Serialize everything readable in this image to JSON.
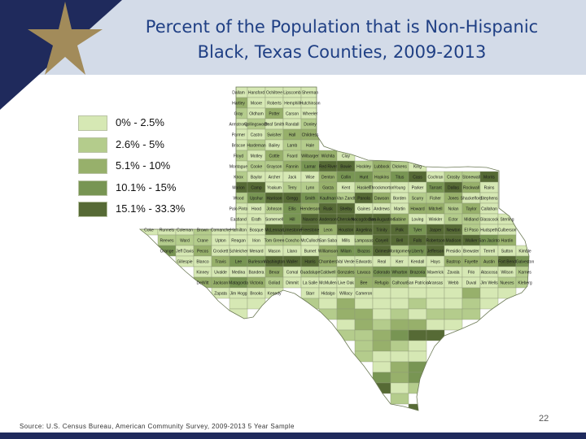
{
  "slide": {
    "title_line1": "Percent of the Population that is Non-Hispanic",
    "title_line2": "Black, Texas Counties, 2009-2013",
    "source": "Source: U.S. Census Bureau, American Community Survey, 2009-2013 5 Year Sample",
    "page_number": "22"
  },
  "colors": {
    "header": "#d3dbe8",
    "navy": "#1f2a5c",
    "gold": "#a28b5a",
    "title": "#1f3f84"
  },
  "legend": {
    "items": [
      {
        "label": "0% - 2.5%",
        "color": "#d6e8b4"
      },
      {
        "label": "2.6% - 5%",
        "color": "#b4cc8c"
      },
      {
        "label": "5.1% - 10%",
        "color": "#97b06b"
      },
      {
        "label": "10.1% - 15%",
        "color": "#789553"
      },
      {
        "label": "15.1% - 33.3%",
        "color": "#566a35"
      }
    ]
  },
  "map": {
    "counties": [
      {
        "name": "Dallam",
        "cls": 0
      },
      {
        "name": "Hansford",
        "cls": 0
      },
      {
        "name": "Ochiltree",
        "cls": 0
      },
      {
        "name": "Lipscomb",
        "cls": 0
      },
      {
        "name": "Sherman",
        "cls": 0
      },
      {
        "name": "Hartley",
        "cls": 2
      },
      {
        "name": "Moore",
        "cls": 0
      },
      {
        "name": "Roberts",
        "cls": 0
      },
      {
        "name": "Hemphill",
        "cls": 0
      },
      {
        "name": "Hutchinson",
        "cls": 0
      },
      {
        "name": "Gray",
        "cls": 1
      },
      {
        "name": "Oldham",
        "cls": 0
      },
      {
        "name": "Potter",
        "cls": 2
      },
      {
        "name": "Carson",
        "cls": 0
      },
      {
        "name": "Wheeler",
        "cls": 0
      },
      {
        "name": "Armstrong",
        "cls": 0
      },
      {
        "name": "Collingsworth",
        "cls": 1
      },
      {
        "name": "Deaf Smith",
        "cls": 0
      },
      {
        "name": "Randall",
        "cls": 0
      },
      {
        "name": "Donley",
        "cls": 1
      },
      {
        "name": "Parmer",
        "cls": 0
      },
      {
        "name": "Castro",
        "cls": 0
      },
      {
        "name": "Swisher",
        "cls": 1
      },
      {
        "name": "Hall",
        "cls": 2
      },
      {
        "name": "Childress",
        "cls": 2
      },
      {
        "name": "Briscoe",
        "cls": 0
      },
      {
        "name": "Hardeman",
        "cls": 1
      },
      {
        "name": "Bailey",
        "cls": 0
      },
      {
        "name": "Lamb",
        "cls": 1
      },
      {
        "name": "Hale",
        "cls": 1
      },
      {
        "name": "Floyd",
        "cls": 1
      },
      {
        "name": "Motley",
        "cls": 0
      },
      {
        "name": "Cottle",
        "cls": 2
      },
      {
        "name": "Foard",
        "cls": 1
      },
      {
        "name": "Wilbarger",
        "cls": 2
      },
      {
        "name": "Wichita",
        "cls": 2
      },
      {
        "name": "Clay",
        "cls": 0
      },
      {
        "name": "Montague",
        "cls": 0
      },
      {
        "name": "Cooke",
        "cls": 1
      },
      {
        "name": "Grayson",
        "cls": 1
      },
      {
        "name": "Fannin",
        "cls": 2
      },
      {
        "name": "Lamar",
        "cls": 3
      },
      {
        "name": "Red River",
        "cls": 4
      },
      {
        "name": "Bowie",
        "cls": 4
      },
      {
        "name": "Hockley",
        "cls": 1
      },
      {
        "name": "Lubbock",
        "cls": 2
      },
      {
        "name": "Dickens",
        "cls": 1
      },
      {
        "name": "King",
        "cls": 0
      },
      {
        "name": "Knox",
        "cls": 1
      },
      {
        "name": "Baylor",
        "cls": 0
      },
      {
        "name": "Archer",
        "cls": 0
      },
      {
        "name": "Jack",
        "cls": 0
      },
      {
        "name": "Wise",
        "cls": 0
      },
      {
        "name": "Denton",
        "cls": 2
      },
      {
        "name": "Collin",
        "cls": 3
      },
      {
        "name": "Hunt",
        "cls": 3
      },
      {
        "name": "Hopkins",
        "cls": 2
      },
      {
        "name": "Titus",
        "cls": 3
      },
      {
        "name": "Cass",
        "cls": 4
      },
      {
        "name": "Cochran",
        "cls": 0
      },
      {
        "name": "Crosby",
        "cls": 1
      },
      {
        "name": "Stonewall",
        "cls": 1
      },
      {
        "name": "Morris",
        "cls": 4
      },
      {
        "name": "Marion",
        "cls": 4
      },
      {
        "name": "Camp",
        "cls": 4
      },
      {
        "name": "Yoakum",
        "cls": 0
      },
      {
        "name": "Terry",
        "cls": 1
      },
      {
        "name": "Lynn",
        "cls": 1
      },
      {
        "name": "Garza",
        "cls": 2
      },
      {
        "name": "Kent",
        "cls": 0
      },
      {
        "name": "Haskell",
        "cls": 1
      },
      {
        "name": "Throckmorton",
        "cls": 0
      },
      {
        "name": "Young",
        "cls": 0
      },
      {
        "name": "Parker",
        "cls": 0
      },
      {
        "name": "Tarrant",
        "cls": 3
      },
      {
        "name": "Dallas",
        "cls": 4
      },
      {
        "name": "Rockwall",
        "cls": 2
      },
      {
        "name": "Rains",
        "cls": 0
      },
      {
        "name": "Wood",
        "cls": 1
      },
      {
        "name": "Upshur",
        "cls": 3
      },
      {
        "name": "Harrison",
        "cls": 4
      },
      {
        "name": "Gregg",
        "cls": 4
      },
      {
        "name": "Smith",
        "cls": 3
      },
      {
        "name": "Kaufman",
        "cls": 3
      },
      {
        "name": "Van Zandt",
        "cls": 1
      },
      {
        "name": "Panola",
        "cls": 4
      },
      {
        "name": "Dawson",
        "cls": 2
      },
      {
        "name": "Borden",
        "cls": 0
      },
      {
        "name": "Scurry",
        "cls": 1
      },
      {
        "name": "Fisher",
        "cls": 1
      },
      {
        "name": "Jones",
        "cls": 2
      },
      {
        "name": "Shackelford",
        "cls": 0
      },
      {
        "name": "Stephens",
        "cls": 0
      },
      {
        "name": "Palo Pinto",
        "cls": 0
      },
      {
        "name": "Hood",
        "cls": 0
      },
      {
        "name": "Johnson",
        "cls": 1
      },
      {
        "name": "Ellis",
        "cls": 3
      },
      {
        "name": "Henderson",
        "cls": 2
      },
      {
        "name": "Rusk",
        "cls": 4
      },
      {
        "name": "Shelby",
        "cls": 4
      },
      {
        "name": "Gaines",
        "cls": 0
      },
      {
        "name": "Andrews",
        "cls": 0
      },
      {
        "name": "Martin",
        "cls": 0
      },
      {
        "name": "Howard",
        "cls": 2
      },
      {
        "name": "Mitchell",
        "cls": 2
      },
      {
        "name": "Nolan",
        "cls": 1
      },
      {
        "name": "Taylor",
        "cls": 2
      },
      {
        "name": "Callahan",
        "cls": 0
      },
      {
        "name": "Eastland",
        "cls": 0
      },
      {
        "name": "Erath",
        "cls": 0
      },
      {
        "name": "Somervell",
        "cls": 0
      },
      {
        "name": "Hill",
        "cls": 3
      },
      {
        "name": "Navarro",
        "cls": 4
      },
      {
        "name": "Anderson",
        "cls": 4
      },
      {
        "name": "Cherokee",
        "cls": 4
      },
      {
        "name": "Nacogdoches",
        "cls": 4
      },
      {
        "name": "San Augustine",
        "cls": 4
      },
      {
        "name": "Sabine",
        "cls": 2
      },
      {
        "name": "Loving",
        "cls": 0
      },
      {
        "name": "Winkler",
        "cls": 0
      },
      {
        "name": "Ector",
        "cls": 1
      },
      {
        "name": "Midland",
        "cls": 1
      },
      {
        "name": "Glasscock",
        "cls": 0
      },
      {
        "name": "Sterling",
        "cls": 0
      },
      {
        "name": "Coke",
        "cls": 0
      },
      {
        "name": "Runnels",
        "cls": 0
      },
      {
        "name": "Coleman",
        "cls": 0
      },
      {
        "name": "Brown",
        "cls": 1
      },
      {
        "name": "Comanche",
        "cls": 0
      },
      {
        "name": "Hamilton",
        "cls": 0
      },
      {
        "name": "Bosque",
        "cls": 0
      },
      {
        "name": "McLennan",
        "cls": 4
      },
      {
        "name": "Limestone",
        "cls": 4
      },
      {
        "name": "Freestone",
        "cls": 4
      },
      {
        "name": "Leon",
        "cls": 2
      },
      {
        "name": "Houston",
        "cls": 4
      },
      {
        "name": "Angelina",
        "cls": 4
      },
      {
        "name": "Trinity",
        "cls": 4
      },
      {
        "name": "Polk",
        "cls": 4
      },
      {
        "name": "Tyler",
        "cls": 3
      },
      {
        "name": "Jasper",
        "cls": 4
      },
      {
        "name": "Newton",
        "cls": 4
      },
      {
        "name": "El Paso",
        "cls": 1
      },
      {
        "name": "Hudspeth",
        "cls": 0
      },
      {
        "name": "Culberson",
        "cls": 0
      },
      {
        "name": "Reeves",
        "cls": 1
      },
      {
        "name": "Ward",
        "cls": 1
      },
      {
        "name": "Crane",
        "cls": 1
      },
      {
        "name": "Upton",
        "cls": 0
      },
      {
        "name": "Reagan",
        "cls": 0
      },
      {
        "name": "Irion",
        "cls": 0
      },
      {
        "name": "Tom Green",
        "cls": 1
      },
      {
        "name": "Concho",
        "cls": 1
      },
      {
        "name": "McCulloch",
        "cls": 0
      },
      {
        "name": "San Saba",
        "cls": 0
      },
      {
        "name": "Mills",
        "cls": 0
      },
      {
        "name": "Lampasas",
        "cls": 1
      },
      {
        "name": "Coryell",
        "cls": 4
      },
      {
        "name": "Bell",
        "cls": 4
      },
      {
        "name": "Falls",
        "cls": 4
      },
      {
        "name": "Robertson",
        "cls": 4
      },
      {
        "name": "Madison",
        "cls": 4
      },
      {
        "name": "Walker",
        "cls": 4
      },
      {
        "name": "San Jacinto",
        "cls": 3
      },
      {
        "name": "Hardin",
        "cls": 2
      },
      {
        "name": "Orange",
        "cls": 3
      },
      {
        "name": "Jeff Davis",
        "cls": 0
      },
      {
        "name": "Pecos",
        "cls": 2
      },
      {
        "name": "Crockett",
        "cls": 0
      },
      {
        "name": "Schleicher",
        "cls": 0
      },
      {
        "name": "Menard",
        "cls": 0
      },
      {
        "name": "Mason",
        "cls": 0
      },
      {
        "name": "Llano",
        "cls": 0
      },
      {
        "name": "Burnet",
        "cls": 0
      },
      {
        "name": "Williamson",
        "cls": 2
      },
      {
        "name": "Milam",
        "cls": 3
      },
      {
        "name": "Brazos",
        "cls": 3
      },
      {
        "name": "Grimes",
        "cls": 4
      },
      {
        "name": "Montgomery",
        "cls": 1
      },
      {
        "name": "Liberty",
        "cls": 3
      },
      {
        "name": "Jefferson",
        "cls": 4
      },
      {
        "name": "Presidio",
        "cls": 0
      },
      {
        "name": "Brewster",
        "cls": 0
      },
      {
        "name": "Terrell",
        "cls": 0
      },
      {
        "name": "Sutton",
        "cls": 0
      },
      {
        "name": "Kimble",
        "cls": 0
      },
      {
        "name": "Gillespie",
        "cls": 0
      },
      {
        "name": "Blanco",
        "cls": 0
      },
      {
        "name": "Travis",
        "cls": 2
      },
      {
        "name": "Lee",
        "cls": 3
      },
      {
        "name": "Burleson",
        "cls": 3
      },
      {
        "name": "Washington",
        "cls": 4
      },
      {
        "name": "Waller",
        "cls": 4
      },
      {
        "name": "Harris",
        "cls": 4
      },
      {
        "name": "Chambers",
        "cls": 2
      },
      {
        "name": "Val Verde",
        "cls": 0
      },
      {
        "name": "Edwards",
        "cls": 0
      },
      {
        "name": "Real",
        "cls": 0
      },
      {
        "name": "Kerr",
        "cls": 0
      },
      {
        "name": "Kendall",
        "cls": 0
      },
      {
        "name": "Hays",
        "cls": 0
      },
      {
        "name": "Bastrop",
        "cls": 2
      },
      {
        "name": "Fayette",
        "cls": 2
      },
      {
        "name": "Austin",
        "cls": 2
      },
      {
        "name": "Fort Bend",
        "cls": 4
      },
      {
        "name": "Galveston",
        "cls": 3
      },
      {
        "name": "Kinney",
        "cls": 0
      },
      {
        "name": "Uvalde",
        "cls": 0
      },
      {
        "name": "Medina",
        "cls": 0
      },
      {
        "name": "Bandera",
        "cls": 0
      },
      {
        "name": "Bexar",
        "cls": 2
      },
      {
        "name": "Comal",
        "cls": 0
      },
      {
        "name": "Guadalupe",
        "cls": 1
      },
      {
        "name": "Caldwell",
        "cls": 1
      },
      {
        "name": "Gonzales",
        "cls": 2
      },
      {
        "name": "Lavaca",
        "cls": 2
      },
      {
        "name": "Colorado",
        "cls": 3
      },
      {
        "name": "Wharton",
        "cls": 3
      },
      {
        "name": "Brazoria",
        "cls": 3
      },
      {
        "name": "Maverick",
        "cls": 0
      },
      {
        "name": "Zavala",
        "cls": 0
      },
      {
        "name": "Frio",
        "cls": 0
      },
      {
        "name": "Atascosa",
        "cls": 0
      },
      {
        "name": "Wilson",
        "cls": 0
      },
      {
        "name": "Karnes",
        "cls": 1
      },
      {
        "name": "DeWitt",
        "cls": 2
      },
      {
        "name": "Jackson",
        "cls": 2
      },
      {
        "name": "Matagorda",
        "cls": 3
      },
      {
        "name": "Victoria",
        "cls": 2
      },
      {
        "name": "Goliad",
        "cls": 1
      },
      {
        "name": "Dimmit",
        "cls": 0
      },
      {
        "name": "La Salle",
        "cls": 0
      },
      {
        "name": "McMullen",
        "cls": 0
      },
      {
        "name": "Live Oak",
        "cls": 0
      },
      {
        "name": "Bee",
        "cls": 2
      },
      {
        "name": "Refugio",
        "cls": 2
      },
      {
        "name": "Calhoun",
        "cls": 1
      },
      {
        "name": "San Patricio",
        "cls": 0
      },
      {
        "name": "Aransas",
        "cls": 0
      },
      {
        "name": "Webb",
        "cls": 0
      },
      {
        "name": "Duval",
        "cls": 0
      },
      {
        "name": "Jim Wells",
        "cls": 0
      },
      {
        "name": "Nueces",
        "cls": 1
      },
      {
        "name": "Kleberg",
        "cls": 1
      },
      {
        "name": "Zapata",
        "cls": 0
      },
      {
        "name": "Jim Hogg",
        "cls": 0
      },
      {
        "name": "Brooks",
        "cls": 0
      },
      {
        "name": "Kenedy",
        "cls": 0
      },
      {
        "name": "Starr",
        "cls": 0
      },
      {
        "name": "Hidalgo",
        "cls": 0
      },
      {
        "name": "Willacy",
        "cls": 0
      },
      {
        "name": "Cameron",
        "cls": 0
      }
    ]
  }
}
